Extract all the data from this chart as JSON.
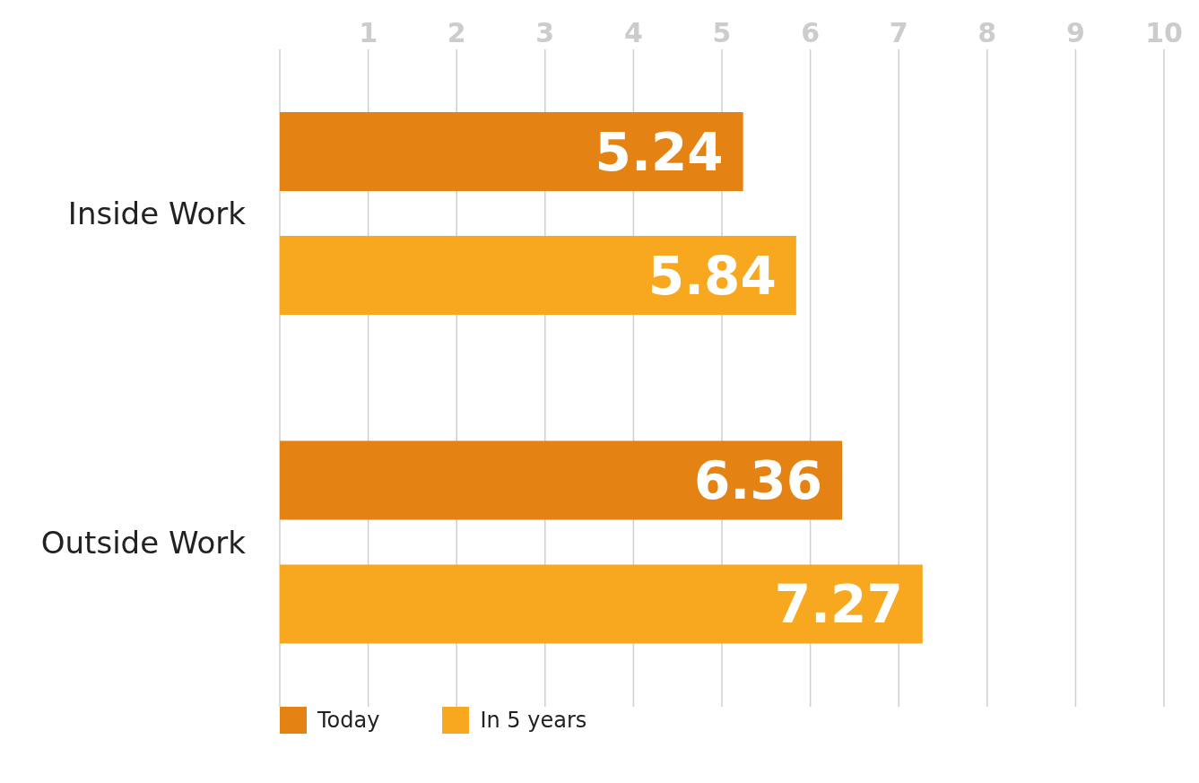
{
  "chart_data": {
    "type": "bar",
    "orientation": "horizontal",
    "categories": [
      "Inside Work",
      "Outside Work"
    ],
    "series": [
      {
        "name": "Today",
        "color": "#e48314",
        "values": [
          5.24,
          6.36
        ]
      },
      {
        "name": "In 5 years",
        "color": "#f7a81f",
        "values": [
          5.84,
          7.27
        ]
      }
    ],
    "xlim": [
      0,
      10
    ],
    "xticks": [
      {
        "value": 0,
        "label": null
      },
      1,
      2,
      3,
      4,
      5,
      6,
      7,
      8,
      9,
      10
    ],
    "grid": "x",
    "legend": "bottom",
    "data_labels": true
  }
}
